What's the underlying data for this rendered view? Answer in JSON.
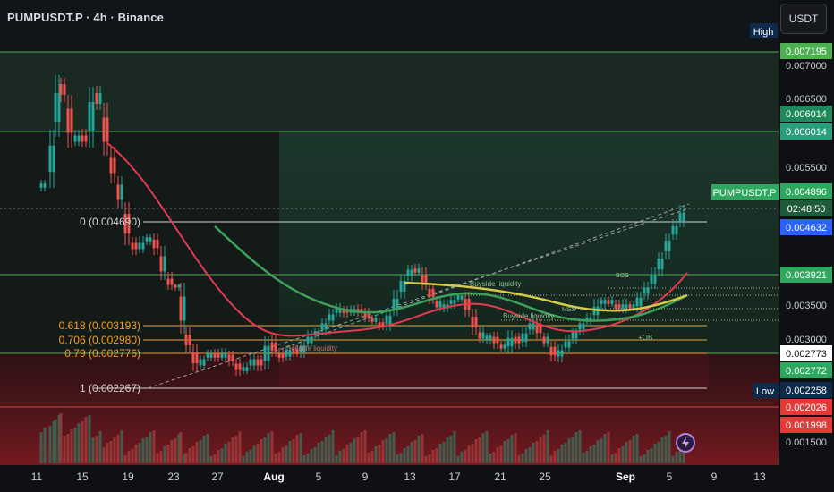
{
  "header": {
    "title": "PUMPUSDT.P · 4h · Binance",
    "unit": "USDT"
  },
  "axis": {
    "price_labels": [
      "0.007000",
      "0.006500",
      "0.005500",
      "0.003500",
      "0.003000",
      "0.001500"
    ],
    "time_labels": [
      "11",
      "15",
      "19",
      "23",
      "27",
      "Aug",
      "5",
      "9",
      "13",
      "17",
      "21",
      "25",
      "Sep",
      "5",
      "9",
      "13"
    ]
  },
  "tags": {
    "high_label": "High",
    "low_label": "Low",
    "symbol_label": "PUMPUSDT.P",
    "countdown": "02:48:50",
    "prices": [
      {
        "id": "high",
        "text": "0.007195",
        "color": "#4caf50",
        "fg": "#ffffff"
      },
      {
        "id": "g1",
        "text": "0.006014",
        "color": "#1e8a5a",
        "fg": "#ffffff"
      },
      {
        "id": "g2",
        "text": "0.006014",
        "color": "#26a07a",
        "fg": "#ffffff"
      },
      {
        "id": "last",
        "text": "0.004896",
        "color": "#2fa85f",
        "fg": "#ffffff"
      },
      {
        "id": "blue",
        "text": "0.004632",
        "color": "#2962ff",
        "fg": "#ffffff"
      },
      {
        "id": "g3",
        "text": "0.003921",
        "color": "#2fa85f",
        "fg": "#ffffff"
      },
      {
        "id": "white",
        "text": "0.002773",
        "color": "#ffffff",
        "fg": "#111111"
      },
      {
        "id": "g4",
        "text": "0.002772",
        "color": "#2fa85f",
        "fg": "#ffffff"
      },
      {
        "id": "low",
        "text": "0.002258",
        "color": "#0d2a4a",
        "fg": "#ffffff"
      },
      {
        "id": "r1",
        "text": "0.002026",
        "color": "#e53935",
        "fg": "#ffffff"
      },
      {
        "id": "r2",
        "text": "0.001998",
        "color": "#e53935",
        "fg": "#ffffff"
      }
    ]
  },
  "fib": [
    {
      "text": "0 (0.004690)",
      "color": "#d0d0d0"
    },
    {
      "text": "0.618 (0.003193)",
      "color": "#f0a030"
    },
    {
      "text": "0.706 (0.002980)",
      "color": "#f0a030"
    },
    {
      "text": "0.79 (0.002776)",
      "color": "#f0a030"
    },
    {
      "text": "1 (0.002267)",
      "color": "#d0d0d0"
    }
  ],
  "annotations": [
    "Buyside liquidity",
    "Buyside liquidity",
    "Sellside liquidity",
    "BOS",
    "MSS",
    "+OB"
  ],
  "colors": {
    "green_zone": "#1e3a2e",
    "red_zone": "#4a1418",
    "ma_red": "#e53950",
    "ma_green": "#3fa05a",
    "ma_yellow": "#d7c94a"
  }
}
